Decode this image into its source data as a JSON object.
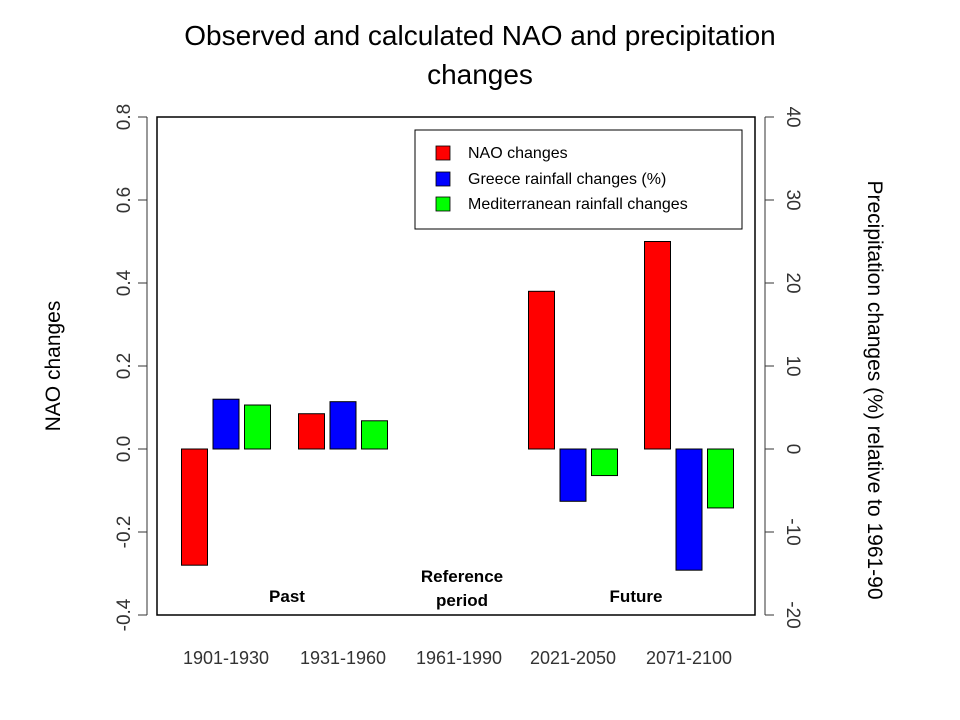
{
  "chart_data": {
    "type": "bar",
    "title_line1": "Observed and calculated NAO and precipitation",
    "title_line2": "changes",
    "ylabel_left": "NAO changes",
    "ylabel_right": "Precipitation changes (%) relative to 1961-90",
    "ylim_left": [
      -0.4,
      0.8
    ],
    "ylim_right": [
      -20,
      40
    ],
    "yticks_left": [
      "-0.4",
      "-0.2",
      "0.0",
      "0.2",
      "0.4",
      "0.6",
      "0.8"
    ],
    "yticks_right": [
      "-20",
      "-10",
      "0",
      "10",
      "20",
      "30",
      "40"
    ],
    "categories": [
      "1901-1930",
      "1931-1960",
      "1961-1990",
      "2021-2050",
      "2071-2100"
    ],
    "series": [
      {
        "name": "NAO changes",
        "color": "#ff0000",
        "axis": "left",
        "values": [
          -0.28,
          0.085,
          null,
          0.38,
          0.5
        ]
      },
      {
        "name": "Greece rainfall changes (%)",
        "color": "#0000ff",
        "axis": "right",
        "values": [
          6,
          5.7,
          null,
          -6.3,
          -14.6
        ]
      },
      {
        "name": "Mediterranean rainfall changes",
        "color": "#00ff00",
        "axis": "right",
        "values": [
          5.3,
          3.4,
          null,
          -3.2,
          -7.1
        ]
      }
    ],
    "annotations": {
      "past": "Past",
      "reference_line1": "Reference",
      "reference_line2": "period",
      "future": "Future"
    },
    "legend_position": "top-right",
    "grid": false
  }
}
